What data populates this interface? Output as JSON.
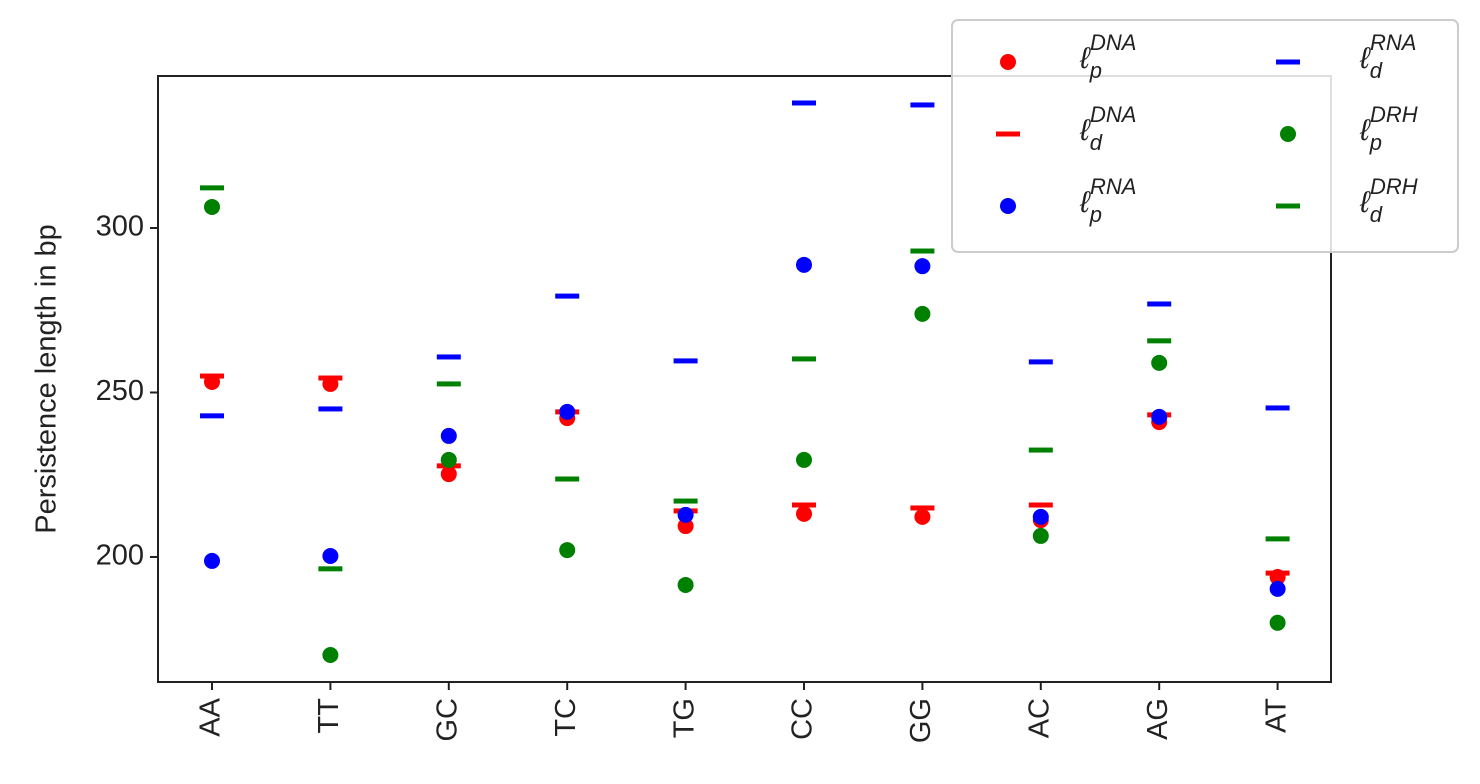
{
  "chart_data": {
    "type": "scatter",
    "ylabel": "Persistence length in bp",
    "categories": [
      "AA",
      "TT",
      "GC",
      "TC",
      "TG",
      "CC",
      "GG",
      "AC",
      "AG",
      "AT"
    ],
    "ylim": [
      162,
      346.2
    ],
    "yticks": [
      200,
      250,
      300
    ],
    "legend": {
      "position": "upper right",
      "columns": 2
    },
    "series": [
      {
        "name": "ℓ_p^{DNA}",
        "color": "#ff0000",
        "marker": "o",
        "values": [
          253.2,
          252.6,
          225.2,
          242.2,
          209.4,
          213.1,
          212.2,
          211.2,
          241,
          193.9
        ]
      },
      {
        "name": "ℓ_d^{DNA}",
        "color": "#ff0000",
        "marker": "_",
        "values": [
          255,
          254.4,
          227.7,
          244.1,
          214,
          215.8,
          214.9,
          215.8,
          243.2,
          195.1
        ]
      },
      {
        "name": "ℓ_p^{RNA}",
        "color": "#0000ff",
        "marker": "o",
        "values": [
          198.8,
          200.3,
          236.8,
          244.1,
          212.8,
          288.8,
          288.4,
          212.2,
          242.6,
          190.3
        ]
      },
      {
        "name": "ℓ_d^{RNA}",
        "color": "#0000ff",
        "marker": "_",
        "values": [
          242.9,
          245,
          260.8,
          279.3,
          259.6,
          338,
          337.4,
          259.3,
          276.9,
          245.3
        ]
      },
      {
        "name": "ℓ_p^{DRH}",
        "color": "#008000",
        "marker": "o",
        "values": [
          306.4,
          170.2,
          229.5,
          202.1,
          191.5,
          229.5,
          273.9,
          206.4,
          259,
          180
        ]
      },
      {
        "name": "ℓ_d^{DRH}",
        "color": "#008000",
        "marker": "_",
        "values": [
          312.2,
          196.4,
          252.6,
          223.7,
          217,
          260.2,
          293,
          232.5,
          265.7,
          205.5
        ]
      }
    ]
  }
}
